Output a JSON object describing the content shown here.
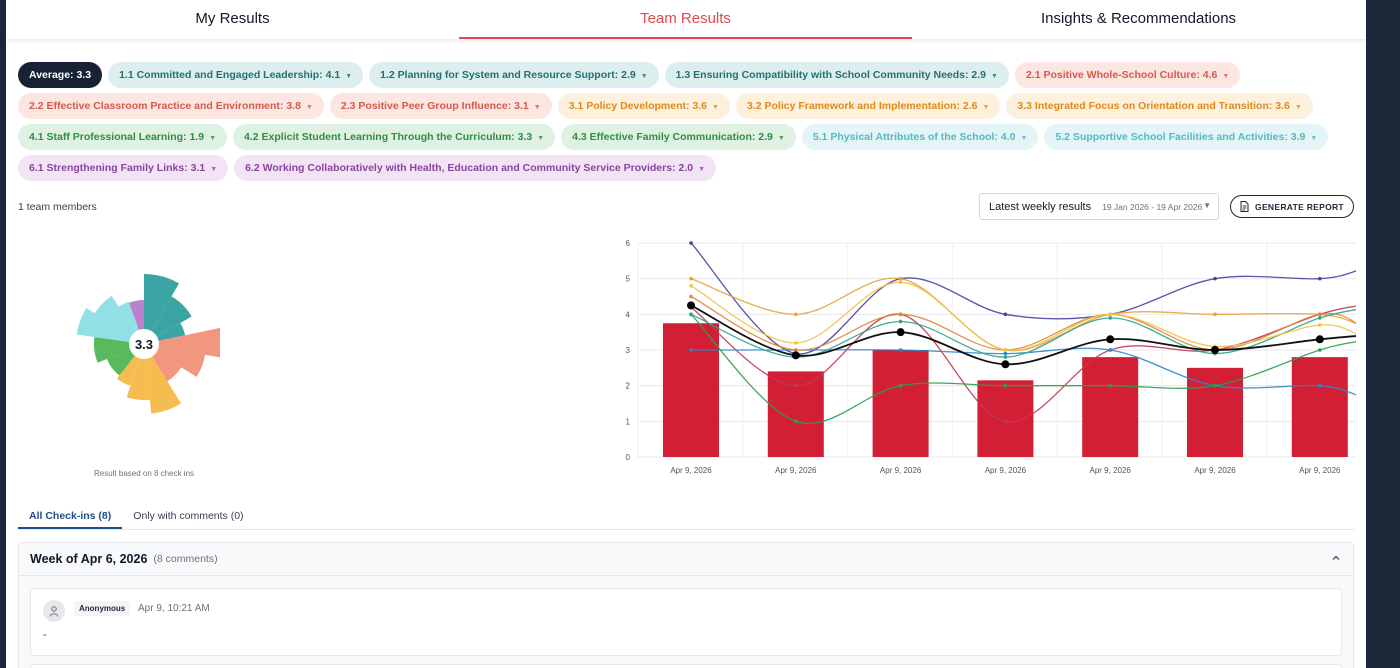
{
  "tabs": [
    {
      "label": "My Results",
      "active": false
    },
    {
      "label": "Team Results",
      "active": true
    },
    {
      "label": "Insights & Recommendations",
      "active": false
    }
  ],
  "filters": {
    "average": "Average: 3.3",
    "chips": [
      "1.1 Committed and Engaged Leadership: 4.1",
      "1.2 Planning for System and Resource Support: 2.9",
      "1.3 Ensuring Compatibility with School Community Needs: 2.9",
      "2.1 Positive Whole-School Culture: 4.6",
      "2.2 Effective Classroom Practice and Environment: 3.8",
      "2.3 Positive Peer Group Influence: 3.1",
      "3.1 Policy Development: 3.6",
      "3.2 Policy Framework and Implementation: 2.6",
      "3.3 Integrated Focus on Orientation and Transition: 3.6",
      "4.1 Staff Professional Learning: 1.9",
      "4.2 Explicit Student Learning Through the Curriculum: 3.3",
      "4.3 Effective Family Communication: 2.9",
      "5.1 Physical Attributes of the School: 4.0",
      "5.2 Supportive School Facilities and Activities: 3.9",
      "6.1 Strengthening Family Links: 3.1",
      "6.2 Working Collaboratively with Health, Education and Community Service Providers: 2.0"
    ]
  },
  "team_count": "1 team members",
  "weekly_select": {
    "label": "Latest weekly results",
    "range": "19 Jan 2026 - 19 Apr 2026"
  },
  "generate_button": "GENERATE REPORT",
  "radar": {
    "center_value": "3.3",
    "note": "Result based on 8 check ins",
    "colors": [
      "#2a9d9b",
      "#f08d74",
      "#f4b740",
      "#4cb34f",
      "#88dde4",
      "#b477c9"
    ]
  },
  "chart_data": {
    "type": "bar",
    "categories": [
      "Apr 9, 2026",
      "Apr 9, 2026",
      "Apr 9, 2026",
      "Apr 9, 2026",
      "Apr 9, 2026",
      "Apr 9, 2026",
      "Apr 9, 2026"
    ],
    "ylim": [
      0,
      6
    ],
    "yticks": [
      "0",
      "1",
      "2",
      "3",
      "4",
      "5",
      "6"
    ],
    "bar_color": "#d21f36",
    "bars": [
      3.75,
      2.4,
      3.0,
      2.15,
      2.8,
      2.5,
      2.8
    ],
    "average_line": [
      4.25,
      2.85,
      3.5,
      2.6,
      3.3,
      3.0,
      3.3
    ],
    "series": [
      {
        "color": "#4b3f9e",
        "values": [
          6.0,
          2.9,
          5.0,
          4.0,
          4.0,
          5.0,
          5.0
        ]
      },
      {
        "color": "#e8a33a",
        "values": [
          5.0,
          4.0,
          5.0,
          3.0,
          4.0,
          4.0,
          4.0
        ]
      },
      {
        "color": "#c2384e",
        "values": [
          4.2,
          2.0,
          4.0,
          1.0,
          3.0,
          3.0,
          4.0
        ]
      },
      {
        "color": "#2f86c5",
        "values": [
          3.0,
          3.0,
          3.0,
          2.9,
          3.0,
          2.0,
          2.0
        ]
      },
      {
        "color": "#2f9e4a",
        "values": [
          4.0,
          1.0,
          2.0,
          2.0,
          2.0,
          2.0,
          3.0
        ]
      },
      {
        "color": "#e0843a",
        "values": [
          4.5,
          3.0,
          4.0,
          3.0,
          4.0,
          3.0,
          4.0
        ]
      },
      {
        "color": "#2aa58f",
        "values": [
          4.0,
          2.8,
          3.8,
          2.8,
          3.9,
          2.9,
          3.9
        ]
      },
      {
        "color": "#f0c343",
        "values": [
          4.8,
          3.2,
          4.9,
          3.0,
          4.0,
          3.1,
          3.7
        ]
      }
    ]
  },
  "subtabs": [
    {
      "label": "All Check-ins (8)",
      "active": true
    },
    {
      "label": "Only with comments (0)",
      "active": false
    }
  ],
  "week": {
    "title": "Week of Apr 6, 2026",
    "count": "(8 comments)",
    "comment": {
      "author": "Anonymous",
      "time": "Apr 9, 10:21 AM",
      "text": "-"
    }
  }
}
